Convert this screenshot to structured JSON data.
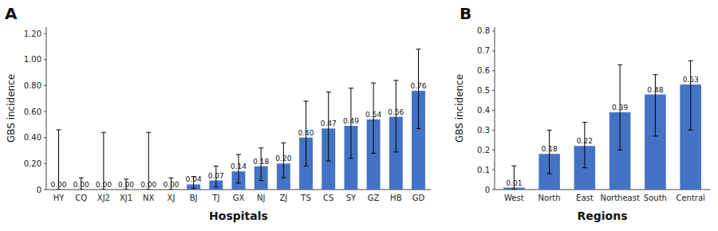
{
  "chart_data": [
    {
      "type": "bar",
      "title": "A",
      "categories": [
        "HY",
        "CQ",
        "XJ2",
        "XJ1",
        "NX",
        "XJ",
        "BJ",
        "TJ",
        "GX",
        "NJ",
        "ZJ",
        "TS",
        "CS",
        "SY",
        "GZ",
        "HB",
        "GD"
      ],
      "values": [
        0.0,
        0.0,
        0.0,
        0.0,
        0.0,
        0.0,
        0.04,
        0.07,
        0.14,
        0.18,
        0.2,
        0.4,
        0.47,
        0.49,
        0.54,
        0.56,
        0.76
      ],
      "value_labels": [
        "0.00",
        "0.00",
        "0.00",
        "0.00",
        "0.00",
        "0.00",
        "0.04",
        "0.07",
        "0.14",
        "0.18",
        "0.20",
        "0.40",
        "0.47",
        "0.49",
        "0.54",
        "0.56",
        "0.76"
      ],
      "ci_low": [
        0.0,
        0.0,
        0.0,
        0.0,
        0.0,
        0.0,
        0.01,
        0.02,
        0.05,
        0.07,
        0.09,
        0.18,
        0.22,
        0.24,
        0.28,
        0.29,
        0.47
      ],
      "ci_high": [
        0.46,
        0.09,
        0.44,
        0.08,
        0.44,
        0.09,
        0.1,
        0.18,
        0.27,
        0.32,
        0.36,
        0.68,
        0.75,
        0.78,
        0.82,
        0.84,
        1.08
      ],
      "x_label": "Hospitals",
      "y_label": "GBS incidence",
      "ylim": [
        0,
        1.25
      ],
      "yticks": [
        0,
        {
          "value": 0.2,
          "label": "0.20"
        },
        {
          "value": 0.4,
          "label": "0.40"
        },
        {
          "value": 0.6,
          "label": "0.60"
        },
        {
          "value": 0.8,
          "label": "0.80"
        },
        {
          "value": 1,
          "label": "1.00"
        },
        {
          "value": 1.2,
          "label": "1.20"
        }
      ],
      "color": "#4472C4",
      "data_labels": true,
      "grid": false
    },
    {
      "type": "bar",
      "title": "B",
      "categories": [
        "West",
        "North",
        "East",
        "Northeast",
        "South",
        "Central"
      ],
      "values": [
        0.01,
        0.18,
        0.22,
        0.39,
        0.48,
        0.53
      ],
      "value_labels": [
        "0.01",
        "0.18",
        "0.22",
        "0.39",
        "0.48",
        "0.53"
      ],
      "ci_low": [
        0.0,
        0.08,
        0.11,
        0.2,
        0.27,
        0.3
      ],
      "ci_high": [
        0.12,
        0.3,
        0.34,
        0.63,
        0.58,
        0.65
      ],
      "x_label": "Regions",
      "y_label": "GBS incidence",
      "ylim": [
        0,
        0.82
      ],
      "yticks": [
        0,
        0.1,
        0.2,
        0.3,
        0.4,
        0.5,
        0.6,
        0.7,
        0.8
      ],
      "color": "#4472C4",
      "data_labels": true,
      "grid": false
    }
  ]
}
